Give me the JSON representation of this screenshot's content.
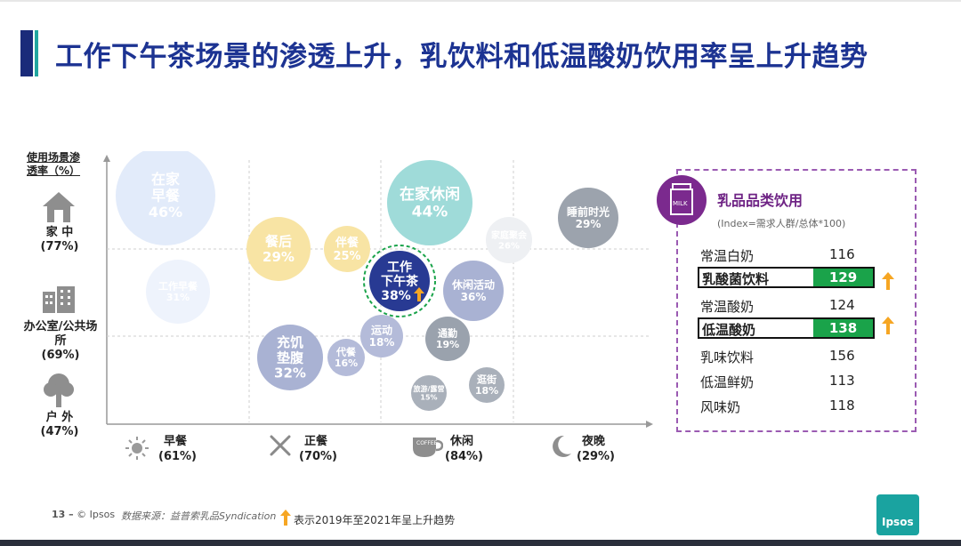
{
  "title": "工作下午茶场景的渗透上升，乳饮料和低温酸奶饮用率呈上升趋势",
  "y_axis": {
    "header": "使用场景渗透率（%）",
    "categories": [
      {
        "label": "家 中",
        "value": "(77%)"
      },
      {
        "label": "办公室/公共场所",
        "value": "(69%)"
      },
      {
        "label": "户 外",
        "value": "(47%)"
      }
    ]
  },
  "x_axis": {
    "categories": [
      {
        "label": "早餐",
        "value": "(61%)"
      },
      {
        "label": "正餐",
        "value": "(70%)"
      },
      {
        "label": "休闲",
        "value": "(84%)"
      },
      {
        "label": "夜晚",
        "value": "(29%)"
      }
    ]
  },
  "chart_data": {
    "type": "scatter",
    "title": "",
    "points": [
      {
        "label": "在家\n早餐",
        "value": 46,
        "time": "早餐",
        "place": "家中",
        "color": "#e2ebfa",
        "text_color": "#ffffff"
      },
      {
        "label": "工作早餐",
        "value": 31,
        "time": "早餐",
        "place": "办公室/公共场所",
        "color": "#eef3fc",
        "text_color": "#ffffff"
      },
      {
        "label": "餐后",
        "value": 29,
        "time": "正餐",
        "place": "家中",
        "color": "#f8e4a4",
        "text_color": "#ffffff"
      },
      {
        "label": "伴餐",
        "value": 25,
        "time": "正餐",
        "place": "家中",
        "color": "#f8e4a4",
        "text_color": "#ffffff"
      },
      {
        "label": "充饥\n垫腹",
        "value": 32,
        "time": "正餐",
        "place": "办公室/公共场所",
        "color": "#a9b2d3",
        "text_color": "#ffffff"
      },
      {
        "label": "代餐",
        "value": 16,
        "time": "正餐",
        "place": "办公室/公共场所",
        "color": "#b4bbd9",
        "text_color": "#ffffff"
      },
      {
        "label": "工作\n下午茶",
        "value": 38,
        "time": "休闲",
        "place": "办公室/公共场所",
        "color": "#283a93",
        "text_color": "#ffffff",
        "highlight": true,
        "trend": "up"
      },
      {
        "label": "运动",
        "value": 18,
        "time": "休闲",
        "place": "办公室/公共场所",
        "color": "#b4bbd9",
        "text_color": "#ffffff"
      },
      {
        "label": "在家休闲",
        "value": 44,
        "time": "休闲",
        "place": "家中",
        "color": "#9fdbd9",
        "text_color": "#ffffff"
      },
      {
        "label": "家庭聚会",
        "value": 26,
        "time": "休闲",
        "place": "家中",
        "color": "#eef0f3",
        "text_color": "#ffffff"
      },
      {
        "label": "休闲活动",
        "value": 36,
        "time": "休闲",
        "place": "办公室/公共场所",
        "color": "#a9b2d3",
        "text_color": "#ffffff"
      },
      {
        "label": "通勤",
        "value": 19,
        "time": "休闲",
        "place": "户外",
        "color": "#9aa2ad",
        "text_color": "#ffffff"
      },
      {
        "label": "旅游/露营",
        "value": 15,
        "time": "休闲",
        "place": "户外",
        "color": "#a9b0ba",
        "text_color": "#ffffff"
      },
      {
        "label": "逛街",
        "value": 18,
        "time": "休闲",
        "place": "户外",
        "color": "#a9b0ba",
        "text_color": "#ffffff"
      },
      {
        "label": "睡前时光",
        "value": 29,
        "time": "夜晚",
        "place": "家中",
        "color": "#9ca3ad",
        "text_color": "#ffffff"
      }
    ],
    "xlabel": "",
    "ylabel": "使用场景渗透率（%）",
    "grid": true
  },
  "panel": {
    "title": "乳品品类饮用",
    "subtitle": "(Index=需求人群/总体*100)",
    "icon_text": "MILK",
    "rows": [
      {
        "name": "常温白奶",
        "value": "116",
        "highlight": false
      },
      {
        "name": "乳酸菌饮料",
        "value": "129",
        "highlight": true
      },
      {
        "name": "常温酸奶",
        "value": "124",
        "highlight": false
      },
      {
        "name": "低温酸奶",
        "value": "138",
        "highlight": true
      },
      {
        "name": "乳味饮料",
        "value": "156",
        "highlight": false
      },
      {
        "name": "低温鲜奶",
        "value": "113",
        "highlight": false
      },
      {
        "name": "风味奶",
        "value": "118",
        "highlight": false
      }
    ]
  },
  "footer": {
    "page": "13 –",
    "copyright": "© Ipsos",
    "source": "数据来源：益普索乳品Syndication",
    "legend": "表示2019年至2021年呈上升趋势"
  },
  "logo": "Ipsos",
  "colors": {
    "title": "#1c3392",
    "accent": "#22a6a0",
    "highlight_green": "#1aa34a",
    "arrow": "#f6a623",
    "panel_border": "#9b5bb2"
  }
}
